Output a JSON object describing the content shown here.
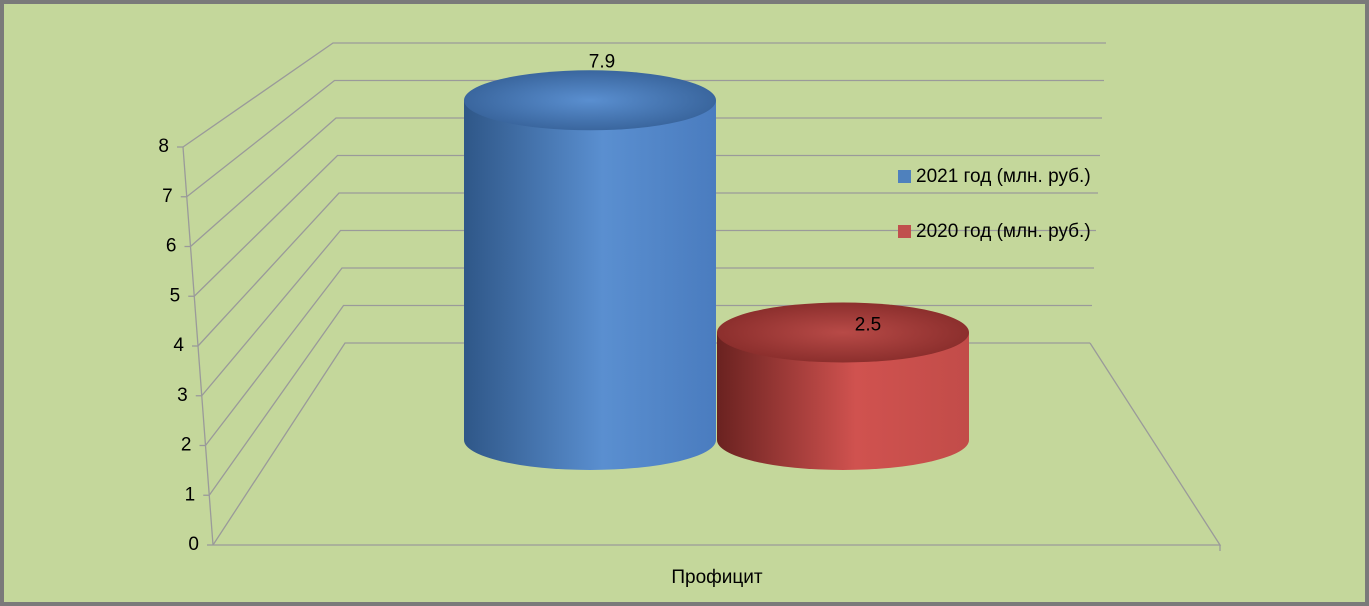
{
  "chart_data": {
    "type": "bar3d",
    "categories": [
      "Профицит"
    ],
    "series": [
      {
        "name": "2021 год (млн. руб.)",
        "color": "#4f81bd",
        "values": [
          7.9
        ]
      },
      {
        "name": "2020 год (млн. руб.)",
        "color": "#c0504d",
        "values": [
          2.5
        ]
      }
    ],
    "ylim": [
      0,
      8
    ],
    "yticks": [
      0,
      1,
      2,
      3,
      4,
      5,
      6,
      7,
      8
    ],
    "grid": true,
    "legend": "right"
  }
}
